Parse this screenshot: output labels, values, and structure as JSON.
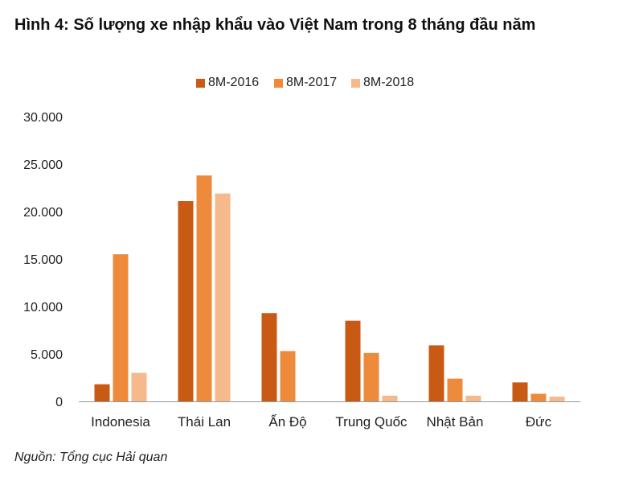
{
  "title": "Hình 4: Số lượng xe nhập khẩu vào Việt Nam trong 8 tháng đầu năm",
  "source": "Nguồn: Tổng cục Hải quan",
  "colors": {
    "8M-2016": "#c85a14",
    "8M-2017": "#ee8a3c",
    "8M-2018": "#f5b98c",
    "axis": "#999999",
    "text": "#222222"
  },
  "chart_data": {
    "type": "bar",
    "title": "Hình 4: Số lượng xe nhập khẩu vào Việt Nam trong 8 tháng đầu năm",
    "categories": [
      "Indonesia",
      "Thái Lan",
      "Ấn Độ",
      "Trung Quốc",
      "Nhật Bản",
      "Đức"
    ],
    "series": [
      {
        "name": "8M-2016",
        "values": [
          1800,
          21100,
          9300,
          8500,
          5900,
          2000
        ]
      },
      {
        "name": "8M-2017",
        "values": [
          15500,
          23800,
          5300,
          5100,
          2400,
          800
        ]
      },
      {
        "name": "8M-2018",
        "values": [
          3000,
          21900,
          0,
          600,
          600,
          500
        ]
      }
    ],
    "ylim": [
      0,
      30000
    ],
    "yticks": [
      0,
      5000,
      10000,
      15000,
      20000,
      25000,
      30000
    ],
    "ytick_labels": [
      "0",
      "5.000",
      "10.000",
      "15.000",
      "20.000",
      "25.000",
      "30.000"
    ],
    "xlabel": "",
    "ylabel": "",
    "grid": false,
    "legend_position": "top"
  }
}
